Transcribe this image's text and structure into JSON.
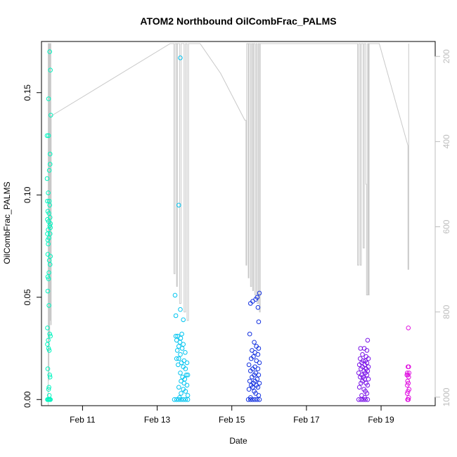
{
  "chart_data": {
    "type": "scatter",
    "title": "ATOM2 Northbound OilCombFrac_PALMS",
    "xlabel": "Date",
    "ylabel": "OilCombFrac_PALMS",
    "x_unit": "day of February 2017",
    "xlim": [
      9.9,
      20.45
    ],
    "ylim": [
      -0.003,
      0.175
    ],
    "x_ticks": [
      11,
      13,
      15,
      17,
      19
    ],
    "x_tick_labels": [
      "Feb 11",
      "Feb 13",
      "Feb 15",
      "Feb 17",
      "Feb 19"
    ],
    "y_ticks": [
      0.0,
      0.05,
      0.1,
      0.15
    ],
    "y_tick_labels": [
      "0.00",
      "0.05",
      "0.10",
      "0.15"
    ],
    "right_axis": {
      "lim_bottom": 1020,
      "lim_top": 165,
      "ticks": [
        200,
        400,
        600,
        800,
        1000
      ],
      "tick_labels": [
        "200",
        "400",
        "600",
        "800",
        "1000"
      ],
      "color": "#bdbdbd"
    },
    "grid": false,
    "legend": "none",
    "series": [
      {
        "color": "#00f5c0",
        "points": [
          [
            10.12,
            0.17
          ],
          [
            10.14,
            0.161
          ],
          [
            10.09,
            0.147
          ],
          [
            10.15,
            0.139
          ],
          [
            10.05,
            0.129
          ],
          [
            10.09,
            0.129
          ],
          [
            10.13,
            0.12
          ],
          [
            10.13,
            0.115
          ],
          [
            10.11,
            0.112
          ],
          [
            10.05,
            0.108
          ],
          [
            10.08,
            0.101
          ],
          [
            10.11,
            0.097
          ],
          [
            10.06,
            0.097
          ],
          [
            10.12,
            0.095
          ],
          [
            10.07,
            0.092
          ],
          [
            10.1,
            0.091
          ],
          [
            10.13,
            0.089
          ],
          [
            10.06,
            0.088
          ],
          [
            10.09,
            0.087
          ],
          [
            10.14,
            0.086
          ],
          [
            10.12,
            0.085
          ],
          [
            10.14,
            0.084
          ],
          [
            10.08,
            0.083
          ],
          [
            10.06,
            0.081
          ],
          [
            10.13,
            0.081
          ],
          [
            10.1,
            0.079
          ],
          [
            10.07,
            0.078
          ],
          [
            10.08,
            0.076
          ],
          [
            10.07,
            0.071
          ],
          [
            10.14,
            0.07
          ],
          [
            10.11,
            0.068
          ],
          [
            10.13,
            0.066
          ],
          [
            10.1,
            0.062
          ],
          [
            10.07,
            0.06
          ],
          [
            10.09,
            0.059
          ],
          [
            10.07,
            0.053
          ],
          [
            10.1,
            0.046
          ],
          [
            10.06,
            0.035
          ],
          [
            10.12,
            0.032
          ],
          [
            10.14,
            0.031
          ],
          [
            10.08,
            0.029
          ],
          [
            10.06,
            0.027
          ],
          [
            10.09,
            0.025
          ],
          [
            10.11,
            0.024
          ],
          [
            10.07,
            0.015
          ],
          [
            10.12,
            0.012
          ],
          [
            10.13,
            0.011
          ],
          [
            10.1,
            0.006
          ],
          [
            10.09,
            0.005
          ],
          [
            10.11,
            0.002
          ],
          [
            10.06,
            0.0
          ],
          [
            10.08,
            0.0
          ],
          [
            10.1,
            0.0
          ],
          [
            10.12,
            0.0
          ],
          [
            10.14,
            0.0
          ]
        ]
      },
      {
        "color": "#00c4f0",
        "points": [
          [
            13.62,
            0.167
          ],
          [
            13.58,
            0.095
          ],
          [
            13.48,
            0.051
          ],
          [
            13.62,
            0.044
          ],
          [
            13.5,
            0.041
          ],
          [
            13.7,
            0.039
          ],
          [
            13.55,
            0.031
          ],
          [
            13.5,
            0.031
          ],
          [
            13.66,
            0.032
          ],
          [
            13.63,
            0.03
          ],
          [
            13.52,
            0.029
          ],
          [
            13.61,
            0.028
          ],
          [
            13.7,
            0.027
          ],
          [
            13.58,
            0.026
          ],
          [
            13.67,
            0.025
          ],
          [
            13.54,
            0.024
          ],
          [
            13.75,
            0.023
          ],
          [
            13.62,
            0.022
          ],
          [
            13.52,
            0.02
          ],
          [
            13.58,
            0.02
          ],
          [
            13.72,
            0.019
          ],
          [
            13.65,
            0.018
          ],
          [
            13.8,
            0.018
          ],
          [
            13.56,
            0.017
          ],
          [
            13.7,
            0.016
          ],
          [
            13.76,
            0.015
          ],
          [
            13.62,
            0.013
          ],
          [
            13.78,
            0.012
          ],
          [
            13.82,
            0.012
          ],
          [
            13.68,
            0.011
          ],
          [
            13.74,
            0.01
          ],
          [
            13.64,
            0.009
          ],
          [
            13.72,
            0.008
          ],
          [
            13.8,
            0.007
          ],
          [
            13.58,
            0.006
          ],
          [
            13.7,
            0.005
          ],
          [
            13.76,
            0.004
          ],
          [
            13.64,
            0.003
          ],
          [
            13.82,
            0.002
          ],
          [
            13.6,
            0.001
          ],
          [
            13.46,
            0.0
          ],
          [
            13.52,
            0.0
          ],
          [
            13.58,
            0.0
          ],
          [
            13.64,
            0.0
          ],
          [
            13.7,
            0.0
          ],
          [
            13.76,
            0.0
          ],
          [
            13.82,
            0.0
          ]
        ]
      },
      {
        "color": "#1230e0",
        "points": [
          [
            15.74,
            0.052
          ],
          [
            15.68,
            0.05
          ],
          [
            15.56,
            0.048
          ],
          [
            15.64,
            0.049
          ],
          [
            15.5,
            0.047
          ],
          [
            15.7,
            0.045
          ],
          [
            15.72,
            0.038
          ],
          [
            15.48,
            0.032
          ],
          [
            15.6,
            0.028
          ],
          [
            15.66,
            0.026
          ],
          [
            15.72,
            0.025
          ],
          [
            15.54,
            0.024
          ],
          [
            15.62,
            0.023
          ],
          [
            15.7,
            0.022
          ],
          [
            15.58,
            0.021
          ],
          [
            15.52,
            0.02
          ],
          [
            15.66,
            0.019
          ],
          [
            15.74,
            0.018
          ],
          [
            15.46,
            0.017
          ],
          [
            15.62,
            0.016
          ],
          [
            15.56,
            0.015
          ],
          [
            15.7,
            0.015
          ],
          [
            15.5,
            0.014
          ],
          [
            15.64,
            0.013
          ],
          [
            15.6,
            0.012
          ],
          [
            15.72,
            0.012
          ],
          [
            15.54,
            0.011
          ],
          [
            15.68,
            0.01
          ],
          [
            15.48,
            0.009
          ],
          [
            15.62,
            0.009
          ],
          [
            15.58,
            0.008
          ],
          [
            15.74,
            0.008
          ],
          [
            15.52,
            0.007
          ],
          [
            15.66,
            0.007
          ],
          [
            15.56,
            0.006
          ],
          [
            15.7,
            0.006
          ],
          [
            15.46,
            0.005
          ],
          [
            15.6,
            0.004
          ],
          [
            15.64,
            0.003
          ],
          [
            15.72,
            0.002
          ],
          [
            15.5,
            0.001
          ],
          [
            15.44,
            0.0
          ],
          [
            15.5,
            0.0
          ],
          [
            15.56,
            0.0
          ],
          [
            15.62,
            0.0
          ],
          [
            15.68,
            0.0
          ],
          [
            15.74,
            0.0
          ]
        ]
      },
      {
        "color": "#7a12e8",
        "points": [
          [
            18.64,
            0.029
          ],
          [
            18.55,
            0.025
          ],
          [
            18.45,
            0.025
          ],
          [
            18.62,
            0.024
          ],
          [
            18.5,
            0.022
          ],
          [
            18.6,
            0.021
          ],
          [
            18.44,
            0.02
          ],
          [
            18.66,
            0.02
          ],
          [
            18.52,
            0.019
          ],
          [
            18.58,
            0.019
          ],
          [
            18.48,
            0.018
          ],
          [
            18.62,
            0.018
          ],
          [
            18.56,
            0.017
          ],
          [
            18.42,
            0.017
          ],
          [
            18.66,
            0.016
          ],
          [
            18.5,
            0.016
          ],
          [
            18.6,
            0.015
          ],
          [
            18.46,
            0.015
          ],
          [
            18.54,
            0.014
          ],
          [
            18.64,
            0.014
          ],
          [
            18.4,
            0.013
          ],
          [
            18.58,
            0.013
          ],
          [
            18.48,
            0.012
          ],
          [
            18.62,
            0.012
          ],
          [
            18.52,
            0.011
          ],
          [
            18.44,
            0.011
          ],
          [
            18.66,
            0.01
          ],
          [
            18.56,
            0.01
          ],
          [
            18.5,
            0.009
          ],
          [
            18.6,
            0.008
          ],
          [
            18.46,
            0.008
          ],
          [
            18.64,
            0.007
          ],
          [
            18.42,
            0.006
          ],
          [
            18.54,
            0.005
          ],
          [
            18.58,
            0.004
          ],
          [
            18.62,
            0.003
          ],
          [
            18.48,
            0.002
          ],
          [
            18.56,
            0.001
          ],
          [
            18.4,
            0.0
          ],
          [
            18.46,
            0.0
          ],
          [
            18.52,
            0.0
          ],
          [
            18.58,
            0.0
          ],
          [
            18.64,
            0.0
          ]
        ]
      },
      {
        "color": "#e010e0",
        "points": [
          [
            19.73,
            0.035
          ],
          [
            19.72,
            0.016
          ],
          [
            19.74,
            0.016
          ],
          [
            19.7,
            0.013
          ],
          [
            19.75,
            0.013
          ],
          [
            19.72,
            0.012
          ],
          [
            19.69,
            0.012
          ],
          [
            19.74,
            0.011
          ],
          [
            19.71,
            0.009
          ],
          [
            19.73,
            0.008
          ],
          [
            19.7,
            0.007
          ],
          [
            19.75,
            0.005
          ],
          [
            19.72,
            0.004
          ],
          [
            19.7,
            0.003
          ],
          [
            19.74,
            0.001
          ],
          [
            19.71,
            0.0
          ],
          [
            19.73,
            0.0
          ]
        ]
      }
    ],
    "altitude_trace": {
      "color": "#c8c8c8",
      "points": [
        [
          10.08,
          1020
        ],
        [
          10.08,
          170
        ],
        [
          10.09,
          170
        ],
        [
          10.09,
          960
        ],
        [
          10.1,
          960
        ],
        [
          10.1,
          170
        ],
        [
          10.11,
          170
        ],
        [
          10.11,
          860
        ],
        [
          10.12,
          860
        ],
        [
          10.12,
          170
        ],
        [
          10.13,
          170
        ],
        [
          10.13,
          820
        ],
        [
          10.14,
          820
        ],
        [
          10.14,
          170
        ],
        [
          10.15,
          170
        ],
        [
          10.15,
          830
        ],
        [
          10.16,
          830
        ],
        [
          10.16,
          340
        ],
        [
          13.35,
          170
        ],
        [
          13.45,
          170
        ],
        [
          13.45,
          710
        ],
        [
          13.48,
          710
        ],
        [
          13.48,
          170
        ],
        [
          13.52,
          170
        ],
        [
          13.52,
          740
        ],
        [
          13.54,
          740
        ],
        [
          13.54,
          170
        ],
        [
          13.6,
          170
        ],
        [
          13.6,
          780
        ],
        [
          13.64,
          780
        ],
        [
          13.64,
          170
        ],
        [
          13.72,
          170
        ],
        [
          13.72,
          800
        ],
        [
          13.76,
          800
        ],
        [
          13.76,
          170
        ],
        [
          13.8,
          170
        ],
        [
          13.8,
          820
        ],
        [
          13.84,
          820
        ],
        [
          13.84,
          170
        ],
        [
          14.15,
          170
        ],
        [
          14.7,
          240
        ],
        [
          15.35,
          350
        ],
        [
          15.38,
          350
        ],
        [
          15.38,
          690
        ],
        [
          15.4,
          690
        ],
        [
          15.4,
          170
        ],
        [
          15.44,
          170
        ],
        [
          15.44,
          720
        ],
        [
          15.46,
          720
        ],
        [
          15.46,
          170
        ],
        [
          15.5,
          170
        ],
        [
          15.5,
          740
        ],
        [
          15.53,
          740
        ],
        [
          15.53,
          170
        ],
        [
          15.56,
          170
        ],
        [
          15.56,
          750
        ],
        [
          15.58,
          750
        ],
        [
          15.58,
          170
        ],
        [
          15.62,
          170
        ],
        [
          15.62,
          760
        ],
        [
          15.65,
          760
        ],
        [
          15.65,
          170
        ],
        [
          15.68,
          170
        ],
        [
          15.68,
          780
        ],
        [
          15.71,
          780
        ],
        [
          15.71,
          170
        ],
        [
          15.74,
          170
        ],
        [
          15.74,
          800
        ],
        [
          15.76,
          800
        ],
        [
          15.76,
          170
        ],
        [
          16.3,
          170
        ],
        [
          17.6,
          170
        ],
        [
          18.37,
          170
        ],
        [
          18.37,
          690
        ],
        [
          18.4,
          690
        ],
        [
          18.4,
          170
        ],
        [
          18.44,
          170
        ],
        [
          18.44,
          690
        ],
        [
          18.47,
          690
        ],
        [
          18.47,
          170
        ],
        [
          18.52,
          170
        ],
        [
          18.52,
          650
        ],
        [
          18.55,
          650
        ],
        [
          18.55,
          170
        ],
        [
          18.59,
          170
        ],
        [
          18.59,
          500
        ],
        [
          18.61,
          500
        ],
        [
          18.61,
          760
        ],
        [
          18.64,
          760
        ],
        [
          18.64,
          170
        ],
        [
          18.66,
          170
        ],
        [
          18.66,
          760
        ],
        [
          18.68,
          760
        ],
        [
          18.68,
          170
        ],
        [
          18.95,
          170
        ],
        [
          19.72,
          410
        ],
        [
          19.72,
          700
        ],
        [
          19.74,
          700
        ],
        [
          19.74,
          170
        ]
      ]
    }
  }
}
